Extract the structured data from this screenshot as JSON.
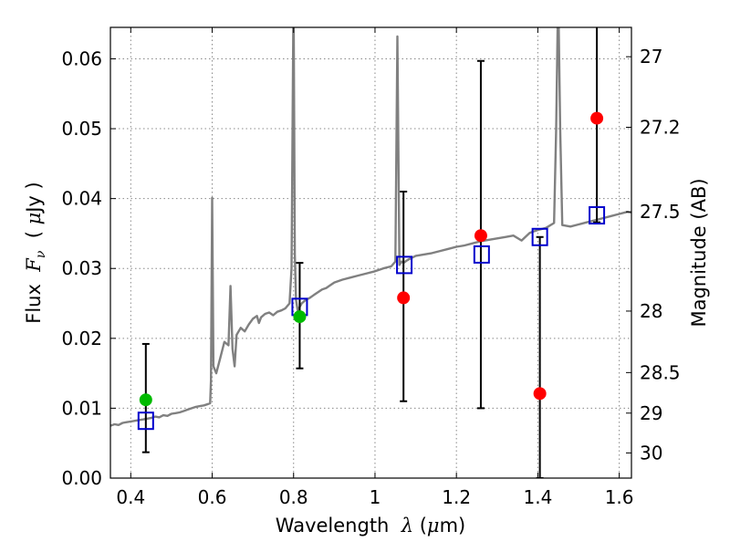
{
  "chart_data": {
    "type": "scatter",
    "xlabel_parts": [
      "Wavelength  ",
      "λ",
      " (",
      "μ",
      "m)"
    ],
    "ylabel_parts": [
      "Flux  ",
      "F",
      "ν",
      "  ( ",
      "μ",
      "Jy )"
    ],
    "y2label": "Magnitude (AB)",
    "xlim": [
      0.35,
      1.63
    ],
    "ylim": [
      0.0,
      0.0645
    ],
    "grid": true,
    "xticks": [
      0.4,
      0.6,
      0.8,
      1.0,
      1.2,
      1.4,
      1.6
    ],
    "xtick_labels": [
      "0.4",
      "0.6",
      "0.8",
      "1",
      "1.2",
      "1.4",
      "1.6"
    ],
    "yticks": [
      0.0,
      0.01,
      0.02,
      0.03,
      0.04,
      0.05,
      0.06
    ],
    "ytick_labels": [
      "0.00",
      "0.01",
      "0.02",
      "0.03",
      "0.04",
      "0.05",
      "0.06"
    ],
    "y2ticks": [
      {
        "label": "27",
        "flux": 0.0603
      },
      {
        "label": "27.2",
        "flux": 0.0502
      },
      {
        "label": "27.5",
        "flux": 0.0381
      },
      {
        "label": "28",
        "flux": 0.0239
      },
      {
        "label": "28.5",
        "flux": 0.0151
      },
      {
        "label": "29",
        "flux": 0.0093
      },
      {
        "label": "30",
        "flux": 0.0036
      }
    ],
    "colors": {
      "spectrum": "#808080",
      "model_points": "#0000cc",
      "detections": "#ff0000",
      "green_points": "#00bb00",
      "errorbars": "#000000",
      "grid": "#888888"
    },
    "spectrum": {
      "name": "model spectrum",
      "x": [
        0.35,
        0.36,
        0.37,
        0.38,
        0.39,
        0.4,
        0.41,
        0.42,
        0.43,
        0.44,
        0.45,
        0.46,
        0.47,
        0.48,
        0.49,
        0.5,
        0.51,
        0.52,
        0.53,
        0.54,
        0.55,
        0.56,
        0.57,
        0.58,
        0.59,
        0.595,
        0.597,
        0.6,
        0.603,
        0.61,
        0.62,
        0.63,
        0.64,
        0.645,
        0.65,
        0.655,
        0.66,
        0.67,
        0.68,
        0.69,
        0.7,
        0.71,
        0.715,
        0.72,
        0.73,
        0.74,
        0.75,
        0.76,
        0.77,
        0.78,
        0.79,
        0.795,
        0.8,
        0.803,
        0.806,
        0.81,
        0.82,
        0.83,
        0.84,
        0.85,
        0.86,
        0.87,
        0.88,
        0.89,
        0.9,
        0.92,
        0.94,
        0.96,
        0.98,
        1.0,
        1.02,
        1.04,
        1.05,
        1.055,
        1.06,
        1.065,
        1.07,
        1.08,
        1.09,
        1.1,
        1.12,
        1.14,
        1.16,
        1.18,
        1.2,
        1.22,
        1.24,
        1.26,
        1.28,
        1.3,
        1.32,
        1.34,
        1.36,
        1.38,
        1.39,
        1.4,
        1.42,
        1.44,
        1.445,
        1.45,
        1.455,
        1.46,
        1.48,
        1.5,
        1.52,
        1.54,
        1.56,
        1.58,
        1.6,
        1.62,
        1.63
      ],
      "y": [
        0.0075,
        0.0077,
        0.0076,
        0.0079,
        0.008,
        0.0081,
        0.0082,
        0.0083,
        0.0084,
        0.0085,
        0.0086,
        0.0088,
        0.0087,
        0.009,
        0.0089,
        0.0092,
        0.0093,
        0.0094,
        0.0096,
        0.0098,
        0.01,
        0.0102,
        0.0103,
        0.0104,
        0.0106,
        0.0107,
        0.014,
        0.0401,
        0.016,
        0.015,
        0.0172,
        0.0195,
        0.019,
        0.0275,
        0.0185,
        0.016,
        0.0205,
        0.0215,
        0.021,
        0.022,
        0.0228,
        0.0232,
        0.0222,
        0.023,
        0.0235,
        0.0237,
        0.0233,
        0.0238,
        0.024,
        0.0243,
        0.025,
        0.03,
        0.07,
        0.032,
        0.0255,
        0.024,
        0.025,
        0.0255,
        0.0258,
        0.0262,
        0.0266,
        0.027,
        0.0272,
        0.0276,
        0.028,
        0.0284,
        0.0287,
        0.029,
        0.0293,
        0.0296,
        0.03,
        0.0303,
        0.031,
        0.0632,
        0.0305,
        0.031,
        0.0308,
        0.0312,
        0.0315,
        0.0318,
        0.032,
        0.0322,
        0.0325,
        0.0328,
        0.0331,
        0.0333,
        0.0336,
        0.0339,
        0.0341,
        0.0343,
        0.0345,
        0.0347,
        0.034,
        0.0351,
        0.0353,
        0.0355,
        0.0358,
        0.0365,
        0.05,
        0.07,
        0.05,
        0.0362,
        0.036,
        0.0363,
        0.0366,
        0.0369,
        0.0372,
        0.0375,
        0.0378,
        0.0381,
        0.038
      ]
    },
    "model_points": {
      "x": [
        0.437,
        0.815,
        1.072,
        1.262,
        1.405,
        1.545
      ],
      "y": [
        0.0082,
        0.0245,
        0.0305,
        0.032,
        0.0345,
        0.0376
      ]
    },
    "green_points": {
      "x": [
        0.437,
        0.815
      ],
      "y": [
        0.0112,
        0.0231
      ],
      "err_low": [
        0.0037,
        0.0157
      ],
      "err_high": [
        0.0192,
        0.0308
      ]
    },
    "detections": {
      "x": [
        1.07,
        1.26,
        1.405,
        1.545
      ],
      "y": [
        0.0258,
        0.0347,
        0.0121,
        0.0515
      ],
      "err_low": [
        0.011,
        0.01,
        0.0,
        0.0366
      ],
      "err_high": [
        0.041,
        0.0597,
        0.0345,
        0.065
      ]
    }
  }
}
